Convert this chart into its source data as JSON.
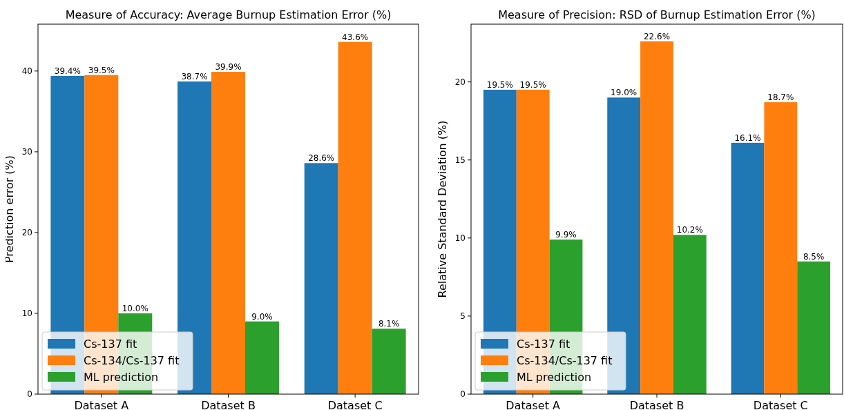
{
  "chart_data": [
    {
      "type": "bar",
      "title": "Measure of Accuracy: Average Burnup Estimation Error (%)",
      "ylabel": "Prediction error (%)",
      "categories": [
        "Dataset A",
        "Dataset B",
        "Dataset C"
      ],
      "ylim": [
        0,
        45.8
      ],
      "yticks": [
        0,
        10,
        20,
        30,
        40
      ],
      "legend": "bottom left",
      "series": [
        {
          "name": "Cs-137 fit",
          "color": "#1f77b4",
          "values": [
            39.4,
            38.7,
            28.6
          ],
          "value_labels": [
            "39.4%",
            "38.7%",
            "28.6%"
          ]
        },
        {
          "name": "Cs-134/Cs-137 fit",
          "color": "#ff7f0e",
          "values": [
            39.5,
            39.9,
            43.6
          ],
          "value_labels": [
            "39.5%",
            "39.9%",
            "43.6%"
          ]
        },
        {
          "name": "ML prediction",
          "color": "#2ca02c",
          "values": [
            10.0,
            9.0,
            8.1
          ],
          "value_labels": [
            "10.0%",
            "9.0%",
            "8.1%"
          ]
        }
      ]
    },
    {
      "type": "bar",
      "title": "Measure of Precision: RSD of Burnup Estimation Error (%)",
      "ylabel": "Relative Standard Deviation (%)",
      "categories": [
        "Dataset A",
        "Dataset B",
        "Dataset C"
      ],
      "ylim": [
        0,
        23.7
      ],
      "yticks": [
        0,
        5,
        10,
        15,
        20
      ],
      "legend": "bottom left",
      "series": [
        {
          "name": "Cs-137 fit",
          "color": "#1f77b4",
          "values": [
            19.5,
            19.0,
            16.1
          ],
          "value_labels": [
            "19.5%",
            "19.0%",
            "16.1%"
          ]
        },
        {
          "name": "Cs-134/Cs-137 fit",
          "color": "#ff7f0e",
          "values": [
            19.5,
            22.6,
            18.7
          ],
          "value_labels": [
            "19.5%",
            "22.6%",
            "18.7%"
          ]
        },
        {
          "name": "ML prediction",
          "color": "#2ca02c",
          "values": [
            9.9,
            10.2,
            8.5
          ],
          "value_labels": [
            "9.9%",
            "10.2%",
            "8.5%"
          ]
        }
      ]
    }
  ]
}
